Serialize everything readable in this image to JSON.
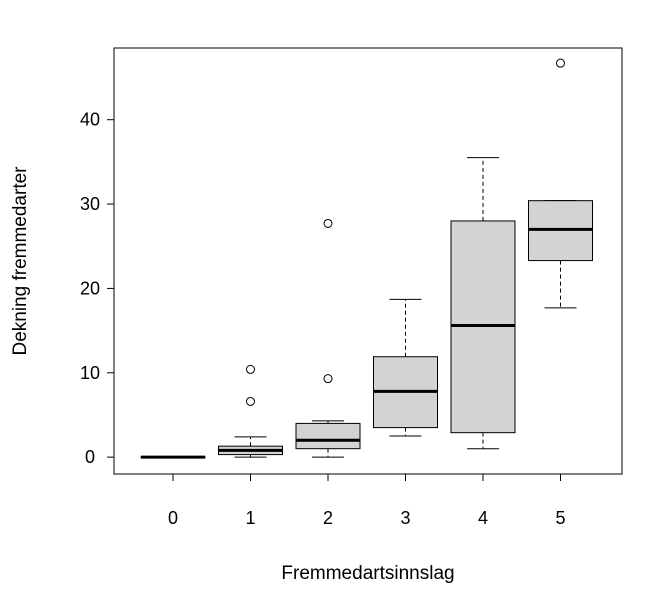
{
  "chart_data": {
    "type": "boxplot",
    "title": "",
    "xlabel": "Fremmedartsinnslag",
    "ylabel": "Dekning fremmedarter",
    "categories": [
      "0",
      "1",
      "2",
      "3",
      "4",
      "5"
    ],
    "ylim": [
      -2,
      48.5
    ],
    "yticks": [
      0,
      10,
      20,
      30,
      40
    ],
    "grid": false,
    "box_fill": "#d3d3d3",
    "boxes": [
      {
        "category": "0",
        "whisker_low": 0,
        "q1": 0,
        "median": 0,
        "q3": 0,
        "whisker_high": 0,
        "outliers": []
      },
      {
        "category": "1",
        "whisker_low": 0,
        "q1": 0.3,
        "median": 0.8,
        "q3": 1.3,
        "whisker_high": 2.4,
        "outliers": [
          6.6,
          10.4
        ]
      },
      {
        "category": "2",
        "whisker_low": 0,
        "q1": 1.0,
        "median": 2.0,
        "q3": 4.0,
        "whisker_high": 4.3,
        "outliers": [
          9.3,
          27.7
        ]
      },
      {
        "category": "3",
        "whisker_low": 2.5,
        "q1": 3.5,
        "median": 7.8,
        "q3": 11.9,
        "whisker_high": 18.7,
        "outliers": []
      },
      {
        "category": "4",
        "whisker_low": 1.0,
        "q1": 2.9,
        "median": 15.6,
        "q3": 28.0,
        "whisker_high": 35.5,
        "outliers": []
      },
      {
        "category": "5",
        "whisker_low": 17.7,
        "q1": 23.3,
        "median": 27.0,
        "q3": 30.4,
        "whisker_high": 30.4,
        "outliers": [
          46.7
        ]
      }
    ]
  }
}
